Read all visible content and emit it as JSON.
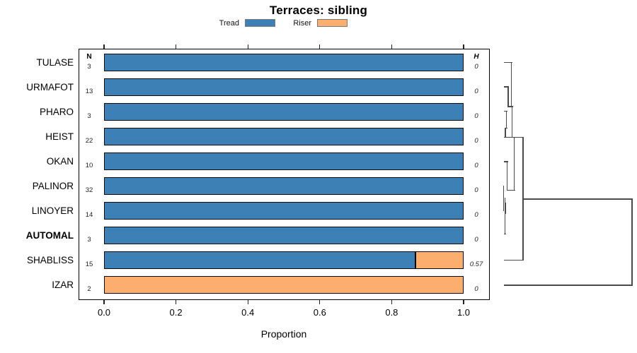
{
  "title": "Terraces: sibling",
  "legend": {
    "items": [
      {
        "label": "Tread",
        "color": "#3d80b5"
      },
      {
        "label": "Riser",
        "color": "#fcae6e"
      }
    ]
  },
  "columns": {
    "n_header": "N",
    "h_header": "H"
  },
  "axis": {
    "label": "Proportion",
    "tick_labels": [
      "0.0",
      "0.2",
      "0.4",
      "0.6",
      "0.8",
      "1.0"
    ],
    "tick_values": [
      0,
      0.2,
      0.4,
      0.6,
      0.8,
      1.0
    ]
  },
  "chart_data": {
    "type": "bar",
    "orientation": "horizontal",
    "stacked": true,
    "title": "Terraces: sibling",
    "xlabel": "Proportion",
    "xlim": [
      0,
      1.0
    ],
    "grid": false,
    "legend_position": "top",
    "categories": [
      "TULASE",
      "URMAFOT",
      "PHARO",
      "HEIST",
      "OKAN",
      "PALINOR",
      "LINOYER",
      "AUTOMAL",
      "SHABLISS",
      "IZAR"
    ],
    "n_values": [
      3,
      13,
      3,
      22,
      10,
      32,
      14,
      3,
      15,
      2
    ],
    "h_values": [
      "0",
      "0",
      "0",
      "0",
      "0",
      "0",
      "0",
      "0",
      "0.57",
      "0"
    ],
    "series": [
      {
        "name": "Tread",
        "color": "#3d80b5",
        "values": [
          1.0,
          1.0,
          1.0,
          1.0,
          1.0,
          1.0,
          1.0,
          1.0,
          0.867,
          0.0
        ]
      },
      {
        "name": "Riser",
        "color": "#fcae6e",
        "values": [
          0.0,
          0.0,
          0.0,
          0.0,
          0.0,
          0.0,
          0.0,
          0.0,
          0.133,
          1.0
        ]
      }
    ],
    "bold_categories": [
      "AUTOMAL"
    ],
    "right_panel": "dendrogram"
  },
  "rows": [
    {
      "label": "TULASE",
      "n": "3",
      "h": "0",
      "tread": 1.0,
      "riser": 0.0,
      "bold": false
    },
    {
      "label": "URMAFOT",
      "n": "13",
      "h": "0",
      "tread": 1.0,
      "riser": 0.0,
      "bold": false
    },
    {
      "label": "PHARO",
      "n": "3",
      "h": "0",
      "tread": 1.0,
      "riser": 0.0,
      "bold": false
    },
    {
      "label": "HEIST",
      "n": "22",
      "h": "0",
      "tread": 1.0,
      "riser": 0.0,
      "bold": false
    },
    {
      "label": "OKAN",
      "n": "10",
      "h": "0",
      "tread": 1.0,
      "riser": 0.0,
      "bold": false
    },
    {
      "label": "PALINOR",
      "n": "32",
      "h": "0",
      "tread": 1.0,
      "riser": 0.0,
      "bold": false
    },
    {
      "label": "LINOYER",
      "n": "14",
      "h": "0",
      "tread": 1.0,
      "riser": 0.0,
      "bold": false
    },
    {
      "label": "AUTOMAL",
      "n": "3",
      "h": "0",
      "tread": 1.0,
      "riser": 0.0,
      "bold": true
    },
    {
      "label": "SHABLISS",
      "n": "15",
      "h": "0.57",
      "tread": 0.867,
      "riser": 0.133,
      "bold": false
    },
    {
      "label": "IZAR",
      "n": "2",
      "h": "0",
      "tread": 0.0,
      "riser": 1.0,
      "bold": false
    }
  ],
  "dendrogram": {
    "line_color": "#4a4a4a",
    "segments": [
      [
        712,
        88.5,
        722.5,
        88.5
      ],
      [
        722.5,
        88.5,
        722.5,
        151
      ],
      [
        712,
        123,
        718,
        123
      ],
      [
        718,
        123,
        718,
        151
      ],
      [
        718,
        151,
        723.5,
        151
      ],
      [
        723.5,
        151,
        723.5,
        194.5
      ],
      [
        712,
        157.5,
        715.5,
        157.5
      ],
      [
        715.5,
        157.5,
        715.5,
        181.5
      ],
      [
        714,
        181.5,
        715.5,
        181.5
      ],
      [
        714,
        181.5,
        714,
        194.5
      ],
      [
        712,
        194.5,
        739,
        194.5
      ],
      [
        739,
        194.5,
        739,
        368.5
      ],
      [
        712,
        229,
        716.5,
        229
      ],
      [
        716.5,
        229,
        716.5,
        269.5
      ],
      [
        716.5,
        269.5,
        726.5,
        269.5
      ],
      [
        726.5,
        194.5,
        726.5,
        269.5
      ],
      [
        711.7,
        263.5,
        711.7,
        298.5
      ],
      [
        713.2,
        281,
        713.2,
        331.5
      ],
      [
        714.4,
        288,
        714.4,
        302
      ],
      [
        712,
        331.5,
        713.2,
        331.5
      ],
      [
        712,
        368.5,
        739,
        368.5
      ],
      [
        739,
        282,
        893,
        282
      ],
      [
        893,
        282,
        893,
        404
      ],
      [
        712,
        404,
        893,
        404
      ]
    ]
  },
  "colors": {
    "tread": "#3d80b5",
    "riser": "#fcae6e",
    "bar_border": "#0a0a0a",
    "box_border": "#000000",
    "dendro_line": "#4a4a4a"
  }
}
